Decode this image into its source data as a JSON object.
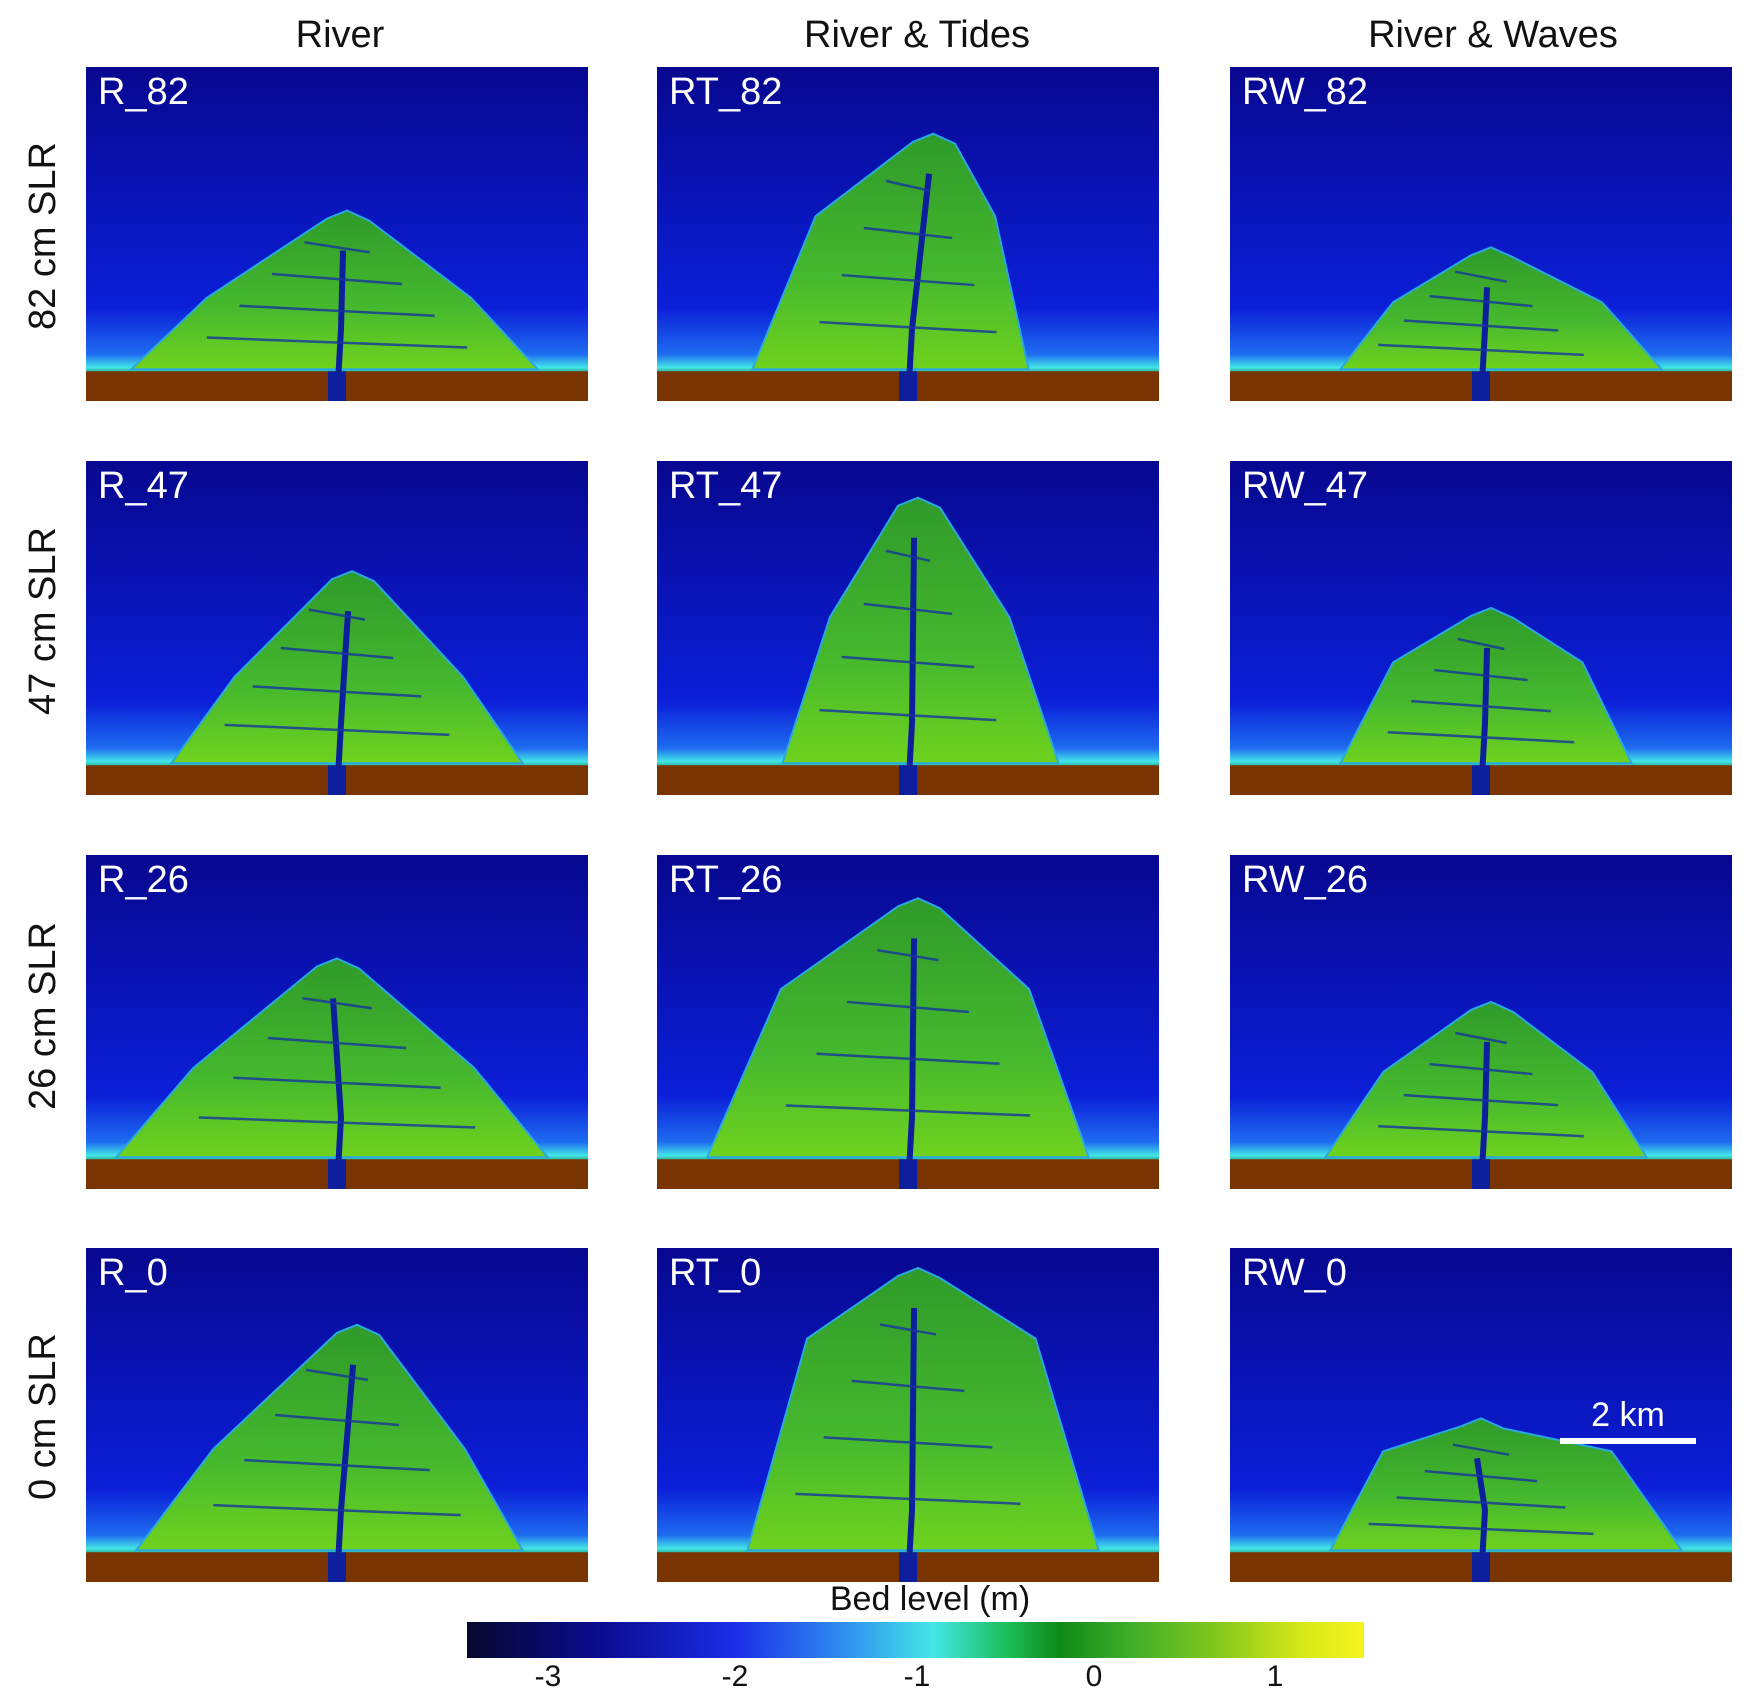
{
  "columns": [
    "River",
    "River & Tides",
    "River & Waves"
  ],
  "rows": [
    "82 cm SLR",
    "47 cm SLR",
    "26 cm SLR",
    "0 cm SLR"
  ],
  "panels": [
    [
      "R_82",
      "RT_82",
      "RW_82"
    ],
    [
      "R_47",
      "RT_47",
      "RW_47"
    ],
    [
      "R_26",
      "RT_26",
      "RW_26"
    ],
    [
      "R_0",
      "RT_0",
      "RW_0"
    ]
  ],
  "scalebar": "2 km",
  "colorbar": {
    "label": "Bed level (m)",
    "ticks": [
      "-3",
      "-2",
      "-1",
      "0",
      "1"
    ]
  },
  "colors": {
    "deep_water": "#0a0a8c",
    "shallow_water": "#2f8ef0",
    "delta_green": "#3fae2a",
    "land_brown": "#7a3402"
  }
}
